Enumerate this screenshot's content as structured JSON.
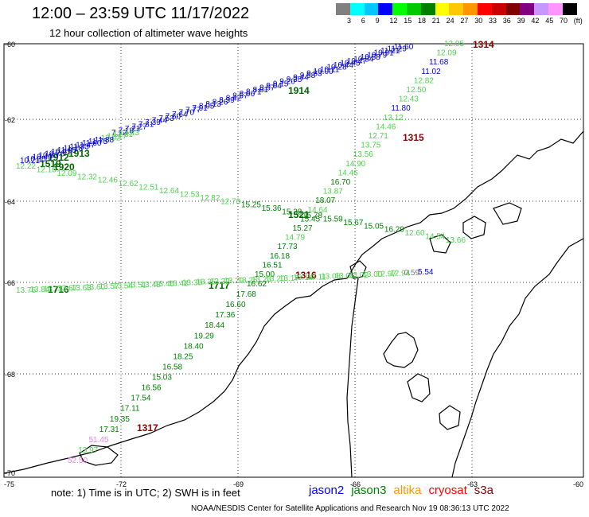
{
  "header": {
    "title": "12:00 – 23:59 UTC 11/17/2022",
    "subtitle": "12 hour collection of altimeter wave heights"
  },
  "scale": {
    "unit": "(ft)",
    "colors": [
      "#808080",
      "#00ffff",
      "#00c8ff",
      "#0000ff",
      "#00ff00",
      "#00c800",
      "#008000",
      "#ffff00",
      "#ffc800",
      "#ff9600",
      "#ff0000",
      "#c80000",
      "#800000",
      "#800080",
      "#c896ff",
      "#ff96ff",
      "#000000"
    ],
    "labels": [
      "3",
      "6",
      "9",
      "12",
      "15",
      "18",
      "21",
      "24",
      "27",
      "30",
      "33",
      "36",
      "39",
      "42",
      "45",
      "70"
    ]
  },
  "axes": {
    "lon_ticks": [
      "-75",
      "-72",
      "-69",
      "-66",
      "-63",
      "-60"
    ],
    "lat_ticks": [
      "-60",
      "-62",
      "-64",
      "-66",
      "-68",
      "-70"
    ]
  },
  "tracks": [
    {
      "id": "1914",
      "color": "#006400",
      "values": [
        "11.60",
        "11.29",
        "11.21",
        "10.91",
        "10.79",
        "10.58",
        "10.54",
        "10.47",
        "10.45",
        "10.44",
        "10.28",
        "10.11",
        "10.00",
        "9.83",
        "9.58",
        "9.44",
        "9.35",
        "9.20",
        "9.15",
        "9.04",
        "8.97",
        "8.81",
        "8.71",
        "8.66",
        "8.57",
        "8.42",
        "8.39",
        "8.26",
        "8.13",
        "8.05",
        "7.91",
        "7.77",
        "7.70",
        "7.64",
        "7.60",
        "7.53",
        "7.44",
        "7.39",
        "7.31",
        "7.27",
        "7.21",
        "7.18",
        "7.12"
      ]
    },
    {
      "id": "1913",
      "color": "#006400",
      "values": [
        "12.43",
        "12.31",
        "12.17",
        "12.02",
        "11.88",
        "11.75",
        "11.60",
        "11.47",
        "11.33",
        "11.18",
        "11.05",
        "10.91",
        "10.76",
        "10.63",
        "10.49",
        "10.35",
        "10.21"
      ]
    },
    {
      "id": "1920",
      "color": "#006400",
      "values": [
        "12.22",
        "12.16",
        "12.09",
        "12.32",
        "12.46",
        "12.62",
        "12.51",
        "12.64",
        "12.53",
        "12.82",
        "12.73",
        "15.25",
        "15.36",
        "15.38",
        "15.78",
        "15.59",
        "15.67",
        "15.05",
        "16.29",
        "12.60",
        "14.54",
        "13.66"
      ]
    },
    {
      "id": "1315",
      "color": "#006400",
      "values": [
        "12.05",
        "12.09",
        "11.68",
        "11.02",
        "12.82",
        "12.50",
        "12.43",
        "11.80",
        "13.12",
        "14.46",
        "12.71",
        "13.75",
        "13.56",
        "14.90",
        "14.46",
        "16.70",
        "13.87",
        "18.07",
        "14.64",
        "15.45",
        "15.27",
        "14.79",
        "17.73",
        "16.18",
        "16.51",
        "15.00"
      ]
    },
    {
      "id": "1316",
      "color": "#006400",
      "values": [
        "13.76",
        "13.84",
        "13.71",
        "13.67",
        "13.63",
        "13.60",
        "13.57",
        "13.54",
        "13.51",
        "13.48",
        "13.45",
        "13.42",
        "13.38",
        "13.35",
        "13.32",
        "13.29",
        "13.26",
        "13.23",
        "13.20",
        "13.17",
        "13.14",
        "13.11",
        "13.08",
        "13.05",
        "13.02",
        "13.00",
        "12.97",
        "12.94",
        "0.59",
        "5.54"
      ]
    },
    {
      "id": "1317",
      "color": "#006400",
      "values": [
        "16.62",
        "17.68",
        "16.60",
        "17.36",
        "18.44",
        "19.29",
        "18.40",
        "18.25",
        "16.58",
        "15.03",
        "16.56",
        "17.54",
        "17.11",
        "19.35",
        "17.31",
        "51.45",
        "13.97",
        "52.50"
      ]
    }
  ],
  "track_ids": [
    "1314",
    "1315",
    "1316",
    "1317",
    "1914",
    "1913",
    "1912",
    "1519",
    "1920",
    "1521",
    "1716",
    "1717"
  ],
  "footer": {
    "note": "note: 1) Time is in UTC; 2) SWH is in feet",
    "satellites": [
      {
        "name": "jason2",
        "color": "#0000ff"
      },
      {
        "name": "jason3",
        "color": "#008000"
      },
      {
        "name": "altika",
        "color": "#ff9600"
      },
      {
        "name": "cryosat",
        "color": "#ff0000"
      },
      {
        "name": "s3a",
        "color": "#800000"
      }
    ],
    "credit": "NOAA/NESDIS Center for Satellite Applications and Research    Nov 19 08:36:13 UTC 2022"
  }
}
